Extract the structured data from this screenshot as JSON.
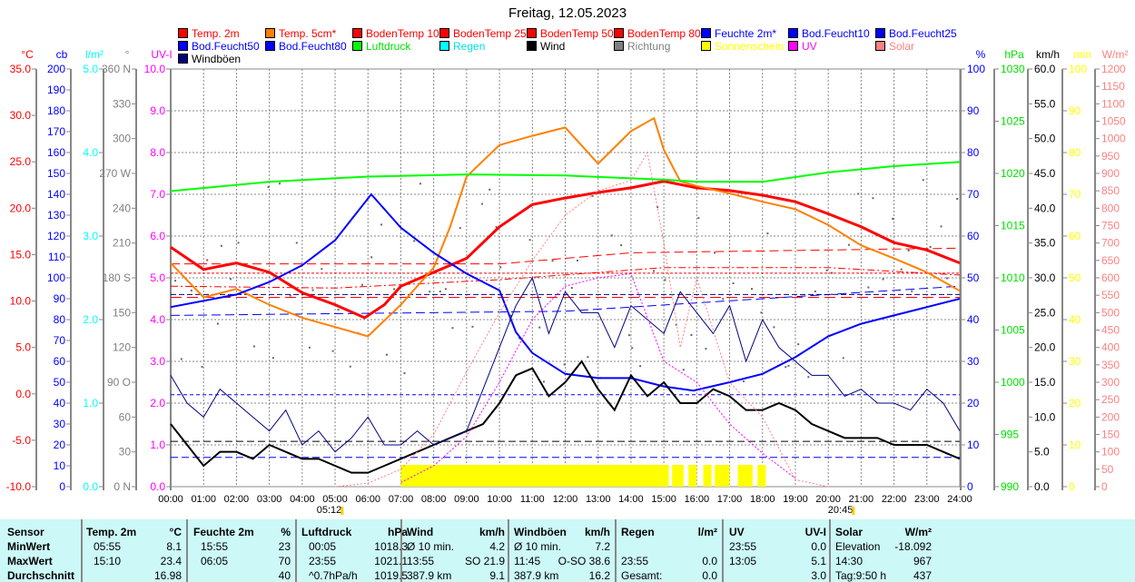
{
  "title": "Freitag, 12.05.2023",
  "legend": [
    {
      "label": "Temp. 2m",
      "color": "#ff0000",
      "text": "#ff0000"
    },
    {
      "label": "Temp. 5cm*",
      "color": "#ff8000",
      "text": "#ff0000"
    },
    {
      "label": "BodenTemp 10",
      "color": "#ff0000",
      "text": "#ff0000"
    },
    {
      "label": "BodenTemp 25",
      "color": "#ff0000",
      "text": "#ff0000"
    },
    {
      "label": "BodenTemp 50",
      "color": "#ff0000",
      "text": "#ff0000"
    },
    {
      "label": "BodenTemp 80",
      "color": "#ff0000",
      "text": "#ff0000"
    },
    {
      "label": "Feuchte 2m*",
      "color": "#0000ff",
      "text": "#0000ff"
    },
    {
      "label": "Bod.Feucht10",
      "color": "#0000ff",
      "text": "#0000ff"
    },
    {
      "label": "Bod.Feucht25",
      "color": "#0000ff",
      "text": "#0000ff"
    },
    {
      "label": "Bod.Feucht50",
      "color": "#0000ff",
      "text": "#0000ff"
    },
    {
      "label": "Bod.Feucht80",
      "color": "#0000ff",
      "text": "#0000ff"
    },
    {
      "label": "Luftdruck",
      "color": "#00ff00",
      "text": "#00e000"
    },
    {
      "label": "Regen",
      "color": "#00ffff",
      "text": "#00e0e0"
    },
    {
      "label": "Wind",
      "color": "#000000",
      "text": "#000000"
    },
    {
      "label": "Richtung",
      "color": "#808080",
      "text": "#808080"
    },
    {
      "label": "Sonnenschein",
      "color": "#ffff00",
      "text": "#ffff00"
    },
    {
      "label": "UV",
      "color": "#ff00ff",
      "text": "#ff00ff"
    },
    {
      "label": "Solar",
      "color": "#ff8080",
      "text": "#ff8080"
    },
    {
      "label": "Windböen",
      "color": "#000080",
      "text": "#000000"
    }
  ],
  "chart_data": {
    "type": "line",
    "title": "Freitag, 12.05.2023",
    "x_range": [
      0,
      24
    ],
    "x_ticks": [
      "00:00",
      "01:00",
      "02:00",
      "03:00",
      "04:00",
      "05:00",
      "06:00",
      "07:00",
      "08:00",
      "09:00",
      "10:00",
      "11:00",
      "12:00",
      "13:00",
      "14:00",
      "15:00",
      "16:00",
      "17:00",
      "18:00",
      "19:00",
      "20:00",
      "21:00",
      "22:00",
      "23:00",
      "24:00"
    ],
    "sunrise": "05:12",
    "sunset": "20:45",
    "sunrise_h": 5.2,
    "sunset_h": 20.75,
    "axes": {
      "temp": {
        "unit": "°C",
        "min": -10,
        "max": 35,
        "step": 5,
        "dec": 1,
        "color": "#ff0000"
      },
      "cb": {
        "unit": "cb",
        "min": 0,
        "max": 200,
        "step": 10,
        "dec": 0,
        "color": "#0000ff"
      },
      "rain": {
        "unit": "l/m²",
        "min": 0,
        "max": 5,
        "step": 1,
        "dec": 1,
        "color": "#00ffff"
      },
      "dir": {
        "unit": "°",
        "min": 0,
        "max": 360,
        "step": 30,
        "dec": 0,
        "color": "#808080",
        "names": {
          "0": "0 N",
          "90": "90 O",
          "180": "180 S",
          "270": "270 W",
          "360": "360 N"
        }
      },
      "uv": {
        "unit": "UV-I",
        "min": 0,
        "max": 10,
        "step": 1,
        "dec": 1,
        "color": "#ff00ff"
      },
      "hum": {
        "unit": "%",
        "min": 0,
        "max": 100,
        "step": 10,
        "dec": 0,
        "color": "#0000ff"
      },
      "press": {
        "unit": "hPa",
        "min": 990,
        "max": 1030,
        "step": 5,
        "dec": 0,
        "color": "#00e000"
      },
      "wind": {
        "unit": "km/h",
        "min": 0,
        "max": 60,
        "step": 5,
        "dec": 1,
        "color": "#000000"
      },
      "sun": {
        "unit": "min",
        "min": 0,
        "max": 100,
        "step": 10,
        "dec": 0,
        "color": "#ffff00"
      },
      "solar": {
        "unit": "W/m²",
        "min": 0,
        "max": 1200,
        "step": 50,
        "dec": 0,
        "color": "#ff8080"
      }
    },
    "series": [
      {
        "name": "Temp. 2m",
        "axis": "temp",
        "color": "#ff0000",
        "width": 3,
        "x": [
          0,
          1,
          2,
          3,
          4,
          5,
          5.9,
          6.5,
          7,
          8,
          9,
          10,
          11,
          12,
          13,
          14,
          15,
          16,
          17,
          18,
          19,
          20,
          21,
          22,
          23,
          24
        ],
        "y": [
          15.8,
          13.4,
          14.1,
          13.1,
          10.9,
          9.6,
          8.2,
          9.6,
          11.6,
          13.1,
          14.6,
          18.0,
          20.4,
          21.1,
          21.7,
          22.2,
          22.9,
          22.2,
          21.9,
          21.4,
          20.7,
          19.4,
          18.0,
          16.3,
          15.5,
          14.1
        ]
      },
      {
        "name": "Temp. 5cm*",
        "axis": "temp",
        "color": "#ff8000",
        "width": 2,
        "x": [
          0,
          1,
          2,
          3,
          4,
          5,
          6,
          7,
          8,
          8.5,
          9,
          10,
          11,
          12,
          13,
          14,
          14.7,
          15,
          15.5,
          16,
          17,
          18,
          19,
          20,
          21,
          22,
          23,
          24
        ],
        "y": [
          14.1,
          10.4,
          11.3,
          9.6,
          8.2,
          7.2,
          6.2,
          9.6,
          13.6,
          18.0,
          23.4,
          26.8,
          27.8,
          28.7,
          24.8,
          28.3,
          29.7,
          26.3,
          22.9,
          22.4,
          21.6,
          20.7,
          19.9,
          18.2,
          16.0,
          14.6,
          13.1,
          11.1
        ]
      },
      {
        "name": "Feuchte 2m*",
        "axis": "hum",
        "color": "#0000ff",
        "width": 2,
        "x": [
          0,
          2,
          3,
          4,
          5,
          6.1,
          7,
          8,
          9,
          10,
          10.5,
          11,
          12,
          13,
          14,
          15,
          15.9,
          17,
          18,
          19,
          20,
          21,
          22,
          23,
          24
        ],
        "y": [
          43,
          46,
          49,
          53,
          59,
          70,
          62,
          56,
          51,
          47,
          37,
          32,
          27,
          26,
          26,
          24,
          23,
          25,
          27,
          31,
          36,
          39,
          41,
          43,
          45
        ]
      },
      {
        "name": "Luftdruck",
        "axis": "press",
        "color": "#00ff00",
        "width": 2,
        "x": [
          0,
          3,
          6,
          9,
          12,
          15,
          16,
          18,
          20,
          22,
          24
        ],
        "y": [
          1018.3,
          1019.2,
          1019.7,
          1019.9,
          1019.8,
          1019.4,
          1019.2,
          1019.2,
          1020.1,
          1020.7,
          1021.1
        ]
      },
      {
        "name": "Wind",
        "axis": "wind",
        "color": "#000000",
        "width": 2,
        "x": [
          0,
          0.5,
          1,
          1.5,
          2,
          2.5,
          3,
          3.5,
          4,
          4.5,
          5,
          5.5,
          6,
          6.5,
          7,
          7.5,
          8,
          8.5,
          9,
          9.5,
          10,
          10.5,
          11,
          11.5,
          12,
          12.5,
          13,
          13.5,
          14,
          14.5,
          15,
          15.5,
          16,
          16.5,
          17,
          17.5,
          18,
          18.5,
          19,
          19.5,
          20,
          20.5,
          21,
          21.5,
          22,
          22.5,
          23,
          23.5,
          24
        ],
        "y": [
          9,
          6,
          3,
          5,
          5,
          4,
          6,
          5,
          4,
          4,
          3,
          2,
          2,
          3,
          4,
          5,
          6,
          7,
          8,
          9,
          12,
          16,
          17,
          13,
          15,
          18,
          14,
          11,
          16,
          13,
          15,
          12,
          12,
          14,
          13,
          11,
          11,
          12,
          11,
          9,
          8,
          7,
          7,
          7,
          6,
          6,
          6,
          5,
          4
        ]
      },
      {
        "name": "Windböen",
        "axis": "wind",
        "color": "#000080",
        "width": 1,
        "x": [
          0,
          0.5,
          1,
          1.5,
          2,
          2.5,
          3,
          3.5,
          4,
          4.5,
          5,
          5.5,
          6,
          6.5,
          7,
          7.5,
          8,
          8.5,
          9,
          9.5,
          10,
          10.5,
          11,
          11.5,
          12,
          12.5,
          13,
          13.5,
          14,
          14.5,
          15,
          15.5,
          16,
          16.5,
          17,
          17.5,
          18,
          18.5,
          19,
          19.5,
          20,
          20.5,
          21,
          21.5,
          22,
          22.5,
          23,
          23.5,
          24
        ],
        "y": [
          16,
          12,
          10,
          14,
          12,
          10,
          8,
          11,
          6,
          8,
          5,
          7,
          10,
          6,
          6,
          8,
          6,
          7,
          8,
          14,
          20,
          26,
          30,
          22,
          28,
          25,
          25,
          20,
          26,
          24,
          22,
          28,
          25,
          22,
          26,
          18,
          24,
          20,
          18,
          16,
          16,
          13,
          14,
          12,
          12,
          11,
          14,
          12,
          8
        ]
      },
      {
        "name": "Solar",
        "axis": "solar",
        "color": "#ff8080",
        "width": 1,
        "dash": "2,2",
        "x": [
          5,
          6,
          7,
          8,
          9,
          10,
          11,
          12,
          13,
          14,
          14.5,
          15,
          15.5,
          16,
          17,
          18,
          19,
          20
        ],
        "y": [
          0,
          10,
          50,
          150,
          330,
          500,
          650,
          780,
          850,
          880,
          960,
          700,
          400,
          600,
          300,
          200,
          20,
          0
        ]
      },
      {
        "name": "UV",
        "axis": "uv",
        "color": "#ff00ff",
        "width": 1,
        "dash": "2,2",
        "x": [
          7,
          8,
          9,
          10,
          11,
          12,
          13,
          14,
          15,
          16,
          17,
          18,
          19
        ],
        "y": [
          0.1,
          0.5,
          1.2,
          2.5,
          4.0,
          4.8,
          5.0,
          5.1,
          3.0,
          2.5,
          1.5,
          0.8,
          0.2
        ]
      }
    ],
    "soil_lines": [
      {
        "name": "BodenTemp 10",
        "axis": "temp",
        "color": "#ff0000",
        "dash": "8,3,2,3",
        "x": [
          0,
          5,
          10,
          15,
          20,
          24
        ],
        "y": [
          11.6,
          11.4,
          12.3,
          13.6,
          13.6,
          12.8
        ]
      },
      {
        "name": "BodenTemp 25",
        "axis": "temp",
        "color": "#ff0000",
        "dash": "10,5",
        "x": [
          0,
          10,
          14,
          24
        ],
        "y": [
          14.0,
          14.0,
          15.2,
          15.7
        ]
      },
      {
        "name": "BodenTemp 50",
        "axis": "temp",
        "color": "#ff0000",
        "dash": "3,2",
        "x": [
          0,
          24
        ],
        "y": [
          13.0,
          13.0
        ]
      },
      {
        "name": "BodenTemp 80",
        "axis": "temp",
        "color": "#ff0000",
        "dash": "12,6",
        "x": [
          0,
          24
        ],
        "y": [
          10.4,
          10.4
        ]
      },
      {
        "name": "Bod.Feucht10",
        "axis": "hum",
        "color": "#0000ff",
        "dash": "10,5",
        "x": [
          0,
          12,
          24
        ],
        "y": [
          41,
          42,
          48
        ]
      },
      {
        "name": "Bod.Feucht25",
        "axis": "hum",
        "color": "#000080",
        "dash": "6,3",
        "x": [
          0,
          24
        ],
        "y": [
          46,
          46
        ]
      },
      {
        "name": "Bod.Feucht50",
        "axis": "hum",
        "color": "#0000ff",
        "dash": "4,3",
        "x": [
          0,
          24
        ],
        "y": [
          22,
          22
        ]
      },
      {
        "name": "Bod.Feucht80",
        "axis": "hum",
        "color": "#0000ff",
        "dash": "8,4",
        "x": [
          0,
          24
        ],
        "y": [
          7,
          7
        ]
      },
      {
        "name": "Regen",
        "axis": "wind",
        "color": "#000000",
        "dash": "8,4",
        "x": [
          0,
          24
        ],
        "y": [
          6.5,
          6.5
        ]
      }
    ],
    "sunshine_intervals": [
      [
        7.0,
        15.15
      ],
      [
        15.25,
        15.6
      ],
      [
        15.75,
        16.0
      ],
      [
        16.2,
        16.45
      ],
      [
        16.55,
        17.0
      ],
      [
        17.25,
        17.7
      ],
      [
        17.85,
        18.1
      ]
    ]
  },
  "table": {
    "headers": [
      [
        "Sensor",
        ""
      ],
      [
        "Temp. 2m",
        "°C"
      ],
      [
        "Feuchte 2m",
        "%"
      ],
      [
        "Luftdruck",
        "hPa"
      ],
      [
        "Wind",
        "km/h"
      ],
      [
        "Windböen",
        "km/h"
      ],
      [
        "Regen",
        "l/m²"
      ],
      [
        "UV",
        "UV-I"
      ],
      [
        "Solar",
        "W/m²"
      ]
    ],
    "rows": [
      {
        "label": "MinWert",
        "cells": [
          [
            "05:55",
            "8.1"
          ],
          [
            "15:55",
            "23"
          ],
          [
            "00:05",
            "1018.3"
          ],
          [
            "Ø 10 min.",
            "4.2"
          ],
          [
            "Ø 10 min.",
            "7.2"
          ],
          [
            "",
            ""
          ],
          [
            "23:55",
            "0.0"
          ],
          [
            "Elevation",
            "-18.092"
          ]
        ]
      },
      {
        "label": "MaxWert",
        "cells": [
          [
            "15:10",
            "23.4"
          ],
          [
            "06:05",
            "70"
          ],
          [
            "23:55",
            "1021.1"
          ],
          [
            "13:55",
            "SO 21.9"
          ],
          [
            "11:45",
            "O-SO 38.6"
          ],
          [
            "23:55",
            "0.0"
          ],
          [
            "13:05",
            "5.1"
          ],
          [
            "14:30",
            "967"
          ]
        ]
      },
      {
        "label": "Durchschnitt",
        "cells": [
          [
            "",
            "16.98"
          ],
          [
            "",
            "40"
          ],
          [
            "^0.7hPa/h",
            "1019.5"
          ],
          [
            "387.9 km",
            "9.1"
          ],
          [
            "387.9 km",
            "16.2"
          ],
          [
            "Gesamt:",
            "0.0"
          ],
          [
            "",
            "3.0"
          ],
          [
            "Tag:9:50 h",
            "437"
          ]
        ]
      }
    ]
  }
}
